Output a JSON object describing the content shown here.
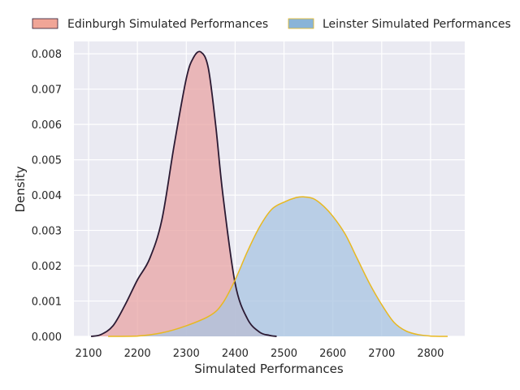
{
  "chart_data": {
    "type": "area",
    "title": "",
    "xlabel": "Simulated Performances",
    "ylabel": "Density",
    "xlim": [
      2070,
      2870
    ],
    "ylim": [
      0,
      0.00835
    ],
    "xticks": [
      2100,
      2200,
      2300,
      2400,
      2500,
      2600,
      2700,
      2800
    ],
    "yticks": [
      0.0,
      0.001,
      0.002,
      0.003,
      0.004,
      0.005,
      0.006,
      0.007,
      0.008
    ],
    "ytick_labels": [
      "0.000",
      "0.001",
      "0.002",
      "0.003",
      "0.004",
      "0.005",
      "0.006",
      "0.007",
      "0.008"
    ],
    "grid": true,
    "legend_position": "top",
    "series": [
      {
        "name": "Edinburgh Simulated Performances",
        "fill_color": "#e8a4a4",
        "legend_fill": "#f0a597",
        "line_color": "#2b1a33",
        "x": [
          2105,
          2125,
          2150,
          2175,
          2200,
          2225,
          2250,
          2275,
          2300,
          2315,
          2330,
          2345,
          2360,
          2375,
          2400,
          2425,
          2450,
          2470,
          2485
        ],
        "y": [
          0.0,
          5e-05,
          0.0003,
          0.0009,
          0.0016,
          0.0022,
          0.0033,
          0.0054,
          0.0073,
          0.0079,
          0.00805,
          0.0076,
          0.006,
          0.004,
          0.0015,
          0.0005,
          0.00012,
          3e-05,
          0.0
        ]
      },
      {
        "name": "Leinster Simulated Performances",
        "fill_color": "#a8c4e2",
        "legend_fill": "#89b4d8",
        "line_color": "#e8b820",
        "x": [
          2140,
          2200,
          2250,
          2300,
          2350,
          2375,
          2400,
          2425,
          2450,
          2475,
          2500,
          2525,
          2540,
          2560,
          2580,
          2600,
          2625,
          2650,
          2675,
          2700,
          2725,
          2750,
          2775,
          2800,
          2835
        ],
        "y": [
          0.0,
          1e-05,
          0.0001,
          0.0003,
          0.0006,
          0.00095,
          0.0016,
          0.0024,
          0.0031,
          0.0036,
          0.0038,
          0.00393,
          0.00395,
          0.0039,
          0.0037,
          0.0034,
          0.0029,
          0.0022,
          0.0015,
          0.0009,
          0.0004,
          0.00015,
          5e-05,
          1e-05,
          0.0
        ]
      }
    ]
  },
  "colors": {
    "plot_background": "#eaeaf2",
    "grid": "#ffffff",
    "text": "#262626"
  }
}
